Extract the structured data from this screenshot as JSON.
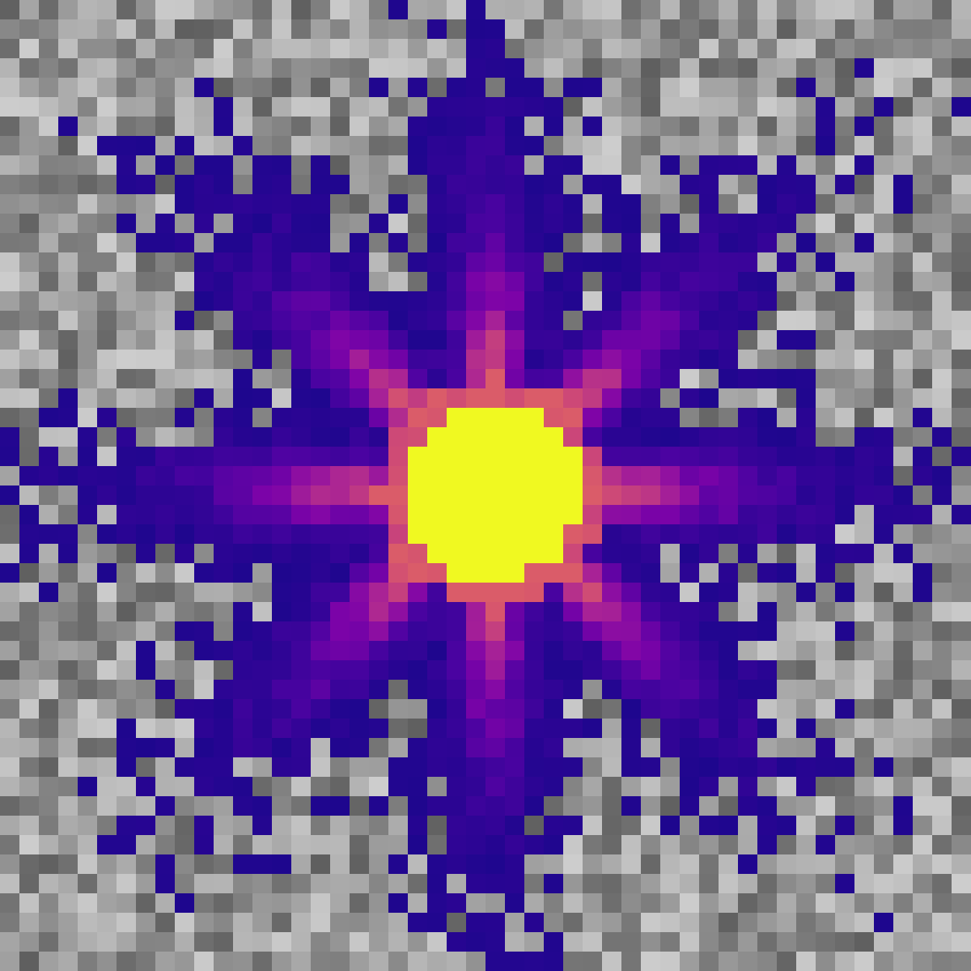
{
  "image": {
    "kind": "pixelated intensity map",
    "cells_across": 50,
    "cells_down": 50,
    "background": "grayscale noise",
    "overlay_colormap": "plasma",
    "colors": {
      "low": "#0d0887",
      "mid_low": "#2a0593",
      "mid": "#7e03a8",
      "mid_high": "#cc4778",
      "high": "#f89540",
      "peak": "#f0f921"
    },
    "feature": {
      "shape": "bright core with radial spikes",
      "spikes": 8,
      "core_radius_cells": 4.6,
      "center_cell": [
        25,
        25
      ]
    }
  }
}
